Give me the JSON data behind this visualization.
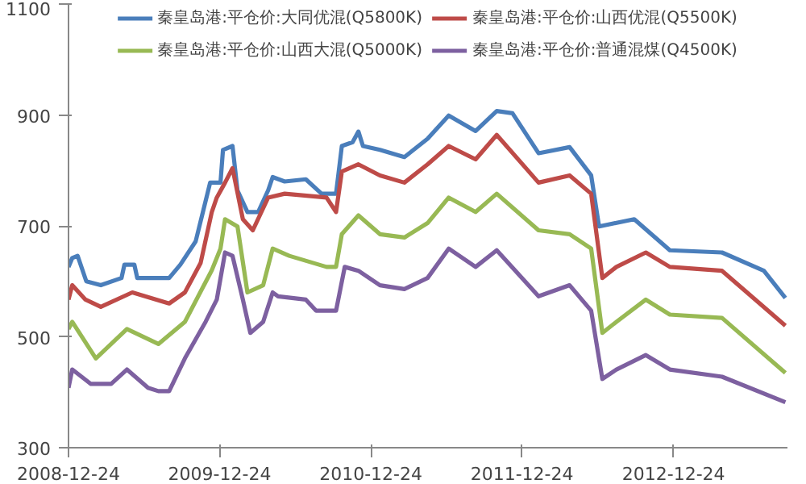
{
  "chart_data": {
    "type": "line",
    "legend": "top",
    "grid": false,
    "marker": "none",
    "line_style": "solid",
    "ylim": [
      300,
      1100
    ],
    "yticks": [
      300,
      500,
      700,
      900,
      1100
    ],
    "xlim": [
      "2008-12-24",
      "2013-09-25"
    ],
    "xticks": [
      "2008-12-24",
      "2009-12-24",
      "2010-12-24",
      "2011-12-24",
      "2012-12-24"
    ],
    "series": [
      {
        "name": "秦皇岛港:平仓价:大同优混(Q5800K)",
        "color": "#4a7ebb",
        "x": [
          "2008-12-24",
          "2009-01-02",
          "2009-01-15",
          "2009-02-05",
          "2009-03-12",
          "2009-05-01",
          "2009-05-08",
          "2009-06-01",
          "2009-06-08",
          "2009-08-24",
          "2009-09-20",
          "2009-10-27",
          "2009-12-01",
          "2009-12-26",
          "2010-01-01",
          "2010-01-24",
          "2010-02-05",
          "2010-03-01",
          "2010-03-27",
          "2010-04-20",
          "2010-05-01",
          "2010-05-30",
          "2010-07-20",
          "2010-08-27",
          "2010-10-01",
          "2010-10-15",
          "2010-11-10",
          "2010-11-24",
          "2010-12-05",
          "2011-01-15",
          "2011-03-15",
          "2011-05-10",
          "2011-06-30",
          "2011-09-03",
          "2011-10-24",
          "2011-12-01",
          "2012-02-02",
          "2012-04-17",
          "2012-06-08",
          "2012-06-27",
          "2012-09-20",
          "2012-12-15",
          "2013-04-20",
          "2013-07-30",
          "2013-09-20"
        ],
        "values": [
          626,
          642,
          646,
          600,
          593,
          606,
          630,
          630,
          606,
          606,
          630,
          672,
          778,
          778,
          837,
          844,
          764,
          725,
          725,
          764,
          788,
          780,
          784,
          758,
          758,
          844,
          851,
          870,
          844,
          837,
          824,
          857,
          899,
          871,
          907,
          903,
          831,
          842,
          791,
          699,
          712,
          656,
          652,
          619,
          570
        ]
      },
      {
        "name": "秦皇岛港:平仓价:山西优混(Q5500K)",
        "color": "#be4b48",
        "x": [
          "2008-12-24",
          "2009-01-02",
          "2009-02-03",
          "2009-03-12",
          "2009-05-27",
          "2009-08-24",
          "2009-10-01",
          "2009-11-08",
          "2009-12-05",
          "2009-12-17",
          "2010-01-06",
          "2010-01-24",
          "2010-02-18",
          "2010-03-14",
          "2010-04-20",
          "2010-05-30",
          "2010-09-08",
          "2010-10-01",
          "2010-10-15",
          "2010-11-24",
          "2011-01-15",
          "2011-03-15",
          "2011-05-10",
          "2011-06-30",
          "2011-09-03",
          "2011-10-24",
          "2012-02-02",
          "2012-04-17",
          "2012-06-08",
          "2012-07-05",
          "2012-08-08",
          "2012-10-18",
          "2012-12-15",
          "2013-04-20",
          "2013-09-20"
        ],
        "values": [
          567,
          593,
          567,
          554,
          580,
          560,
          580,
          633,
          725,
          751,
          778,
          804,
          712,
          692,
          751,
          758,
          751,
          725,
          798,
          811,
          791,
          778,
          811,
          844,
          820,
          864,
          778,
          791,
          758,
          606,
          626,
          652,
          626,
          619,
          520
        ]
      },
      {
        "name": "秦皇岛港:平仓价:山西大混(Q5000K)",
        "color": "#98b954",
        "x": [
          "2008-12-24",
          "2009-01-02",
          "2009-02-28",
          "2009-05-14",
          "2009-07-29",
          "2009-10-01",
          "2009-12-05",
          "2009-12-26",
          "2010-01-06",
          "2010-02-05",
          "2010-03-01",
          "2010-04-08",
          "2010-05-01",
          "2010-06-10",
          "2010-09-08",
          "2010-10-01",
          "2010-10-15",
          "2010-11-24",
          "2011-01-15",
          "2011-03-15",
          "2011-05-10",
          "2011-06-30",
          "2011-09-03",
          "2011-10-24",
          "2012-02-02",
          "2012-04-17",
          "2012-06-08",
          "2012-07-05",
          "2012-08-08",
          "2012-10-18",
          "2012-12-15",
          "2013-04-20",
          "2013-09-20"
        ],
        "values": [
          514,
          527,
          461,
          514,
          487,
          527,
          620,
          659,
          712,
          699,
          580,
          593,
          659,
          646,
          626,
          626,
          685,
          719,
          685,
          679,
          705,
          751,
          725,
          758,
          692,
          685,
          659,
          507,
          527,
          567,
          540,
          534,
          435
        ]
      },
      {
        "name": "秦皇岛港:平仓价:普通混煤(Q4500K)",
        "color": "#7d60a0",
        "x": [
          "2008-12-24",
          "2009-01-02",
          "2009-02-16",
          "2009-04-06",
          "2009-05-14",
          "2009-07-04",
          "2009-07-29",
          "2009-08-24",
          "2009-10-01",
          "2009-11-20",
          "2009-12-17",
          "2010-01-06",
          "2010-01-24",
          "2010-02-18",
          "2010-03-08",
          "2010-04-08",
          "2010-05-01",
          "2010-05-14",
          "2010-07-20",
          "2010-08-14",
          "2010-10-01",
          "2010-10-22",
          "2010-11-24",
          "2011-01-15",
          "2011-03-15",
          "2011-05-10",
          "2011-06-30",
          "2011-09-03",
          "2011-10-24",
          "2012-02-02",
          "2012-04-17",
          "2012-06-08",
          "2012-07-05",
          "2012-08-08",
          "2012-10-18",
          "2012-12-15",
          "2013-04-20",
          "2013-09-20"
        ],
        "values": [
          408,
          441,
          415,
          415,
          441,
          408,
          402,
          402,
          461,
          527,
          567,
          652,
          646,
          567,
          507,
          527,
          580,
          573,
          567,
          547,
          547,
          626,
          619,
          593,
          586,
          606,
          659,
          626,
          656,
          573,
          593,
          547,
          424,
          441,
          467,
          441,
          428,
          382
        ]
      }
    ]
  }
}
